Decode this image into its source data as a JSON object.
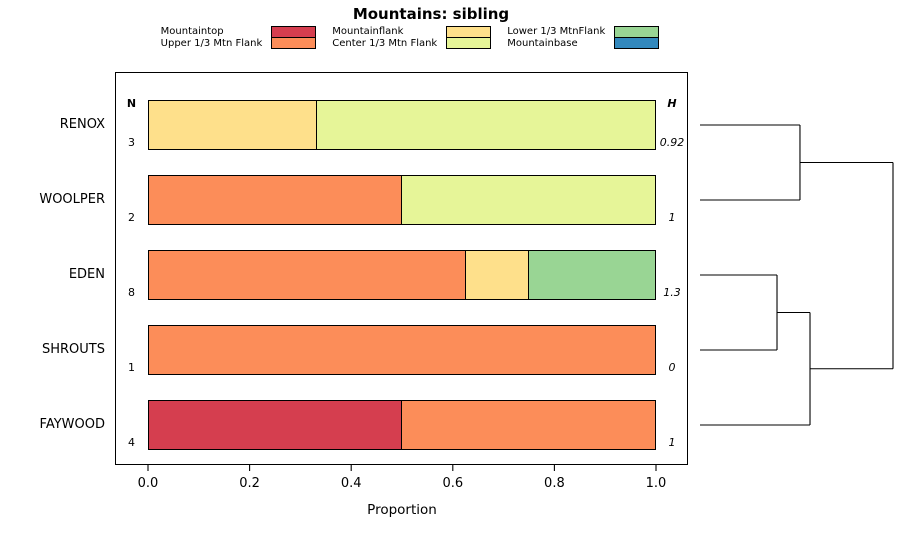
{
  "chart_data": {
    "type": "bar",
    "variant": "horizontal-stacked-proportion-with-dendrogram",
    "title": "Mountains: sibling",
    "xlabel": "Proportion",
    "xlim": [
      0,
      1
    ],
    "xticks": [
      "0.0",
      "0.2",
      "0.4",
      "0.6",
      "0.8",
      "1.0"
    ],
    "grid": false,
    "legend_position": "top",
    "n_header": "N",
    "h_header": "H",
    "categories": [
      "RENOX",
      "WOOLPER",
      "EDEN",
      "SHROUTS",
      "FAYWOOD"
    ],
    "n_values": [
      "3",
      "2",
      "8",
      "1",
      "4"
    ],
    "h_values": [
      "0.92",
      "1",
      "1.3",
      "0",
      "1"
    ],
    "legend": [
      {
        "label": "Mountaintop",
        "color": "#D53E4F"
      },
      {
        "label": "Upper 1/3 Mtn Flank",
        "color": "#FC8D59"
      },
      {
        "label": "Mountainflank",
        "color": "#FEE08B"
      },
      {
        "label": "Center 1/3 Mtn Flank",
        "color": "#E6F598"
      },
      {
        "label": "Lower 1/3 MtnFlank",
        "color": "#99D594"
      },
      {
        "label": "Mountainbase",
        "color": "#3288BD"
      }
    ],
    "bars": [
      {
        "category": "RENOX",
        "segments": [
          {
            "class": "Mountainflank",
            "value": 0.333
          },
          {
            "class": "Center 1/3 Mtn Flank",
            "value": 0.667
          }
        ]
      },
      {
        "category": "WOOLPER",
        "segments": [
          {
            "class": "Upper 1/3 Mtn Flank",
            "value": 0.5
          },
          {
            "class": "Center 1/3 Mtn Flank",
            "value": 0.5
          }
        ]
      },
      {
        "category": "EDEN",
        "segments": [
          {
            "class": "Upper 1/3 Mtn Flank",
            "value": 0.625
          },
          {
            "class": "Mountainflank",
            "value": 0.125
          },
          {
            "class": "Lower 1/3 MtnFlank",
            "value": 0.25
          }
        ]
      },
      {
        "category": "SHROUTS",
        "segments": [
          {
            "class": "Upper 1/3 Mtn Flank",
            "value": 1.0
          }
        ]
      },
      {
        "category": "FAYWOOD",
        "segments": [
          {
            "class": "Mountaintop",
            "value": 0.5
          },
          {
            "class": "Upper 1/3 Mtn Flank",
            "value": 0.5
          }
        ]
      }
    ],
    "dendrogram": {
      "note": "x normalized 0..1 from leaf side to max merge height; row units are category rows",
      "segments": [
        [
          0,
          0,
          0.518,
          0
        ],
        [
          0,
          1,
          0.518,
          1
        ],
        [
          0.518,
          0,
          0.518,
          1
        ],
        [
          0.518,
          0.5,
          1,
          0.5
        ],
        [
          0,
          2,
          0.399,
          2
        ],
        [
          0,
          3,
          0.399,
          3
        ],
        [
          0.399,
          2,
          0.399,
          3
        ],
        [
          0.399,
          2.5,
          0.57,
          2.5
        ],
        [
          0,
          4,
          0.57,
          4
        ],
        [
          0.57,
          2.5,
          0.57,
          4
        ],
        [
          0.57,
          3.25,
          1,
          3.25
        ],
        [
          1,
          0.5,
          1,
          3.25
        ]
      ]
    }
  }
}
